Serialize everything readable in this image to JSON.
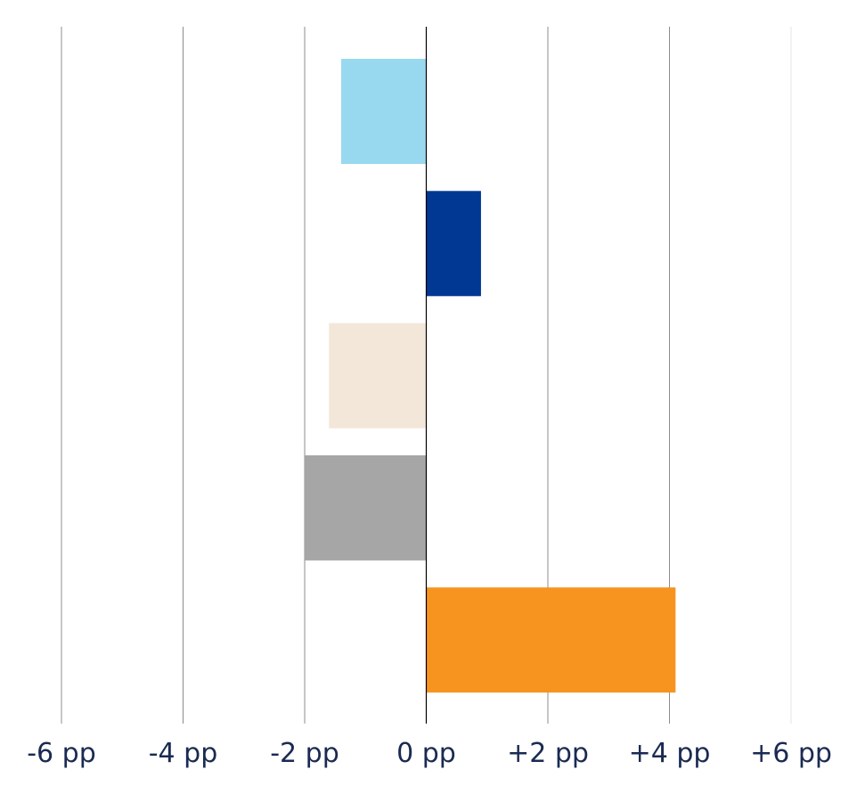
{
  "chart_data": {
    "type": "bar",
    "orientation": "horizontal",
    "xlim": [
      -6,
      6
    ],
    "x_ticks": [
      -6,
      -4,
      -2,
      0,
      2,
      4,
      6
    ],
    "x_tick_labels": [
      "-6 pp",
      "-4 pp",
      "-2 pp",
      "0 pp",
      "+2 pp",
      "+4 pp",
      "+6 pp"
    ],
    "grid": "vertical",
    "bars": [
      {
        "value": -1.4,
        "color": "#99d9f0"
      },
      {
        "value": 0.9,
        "color": "#003893"
      },
      {
        "value": -1.6,
        "color": "#f2e7d8"
      },
      {
        "value": -2.0,
        "color": "#a6a6a6"
      },
      {
        "value": 4.1,
        "color": "#f6941f"
      }
    ],
    "grid_color": "#8c8c8c",
    "zero_line_color": "#000000",
    "text_color": "#1a2a52"
  }
}
